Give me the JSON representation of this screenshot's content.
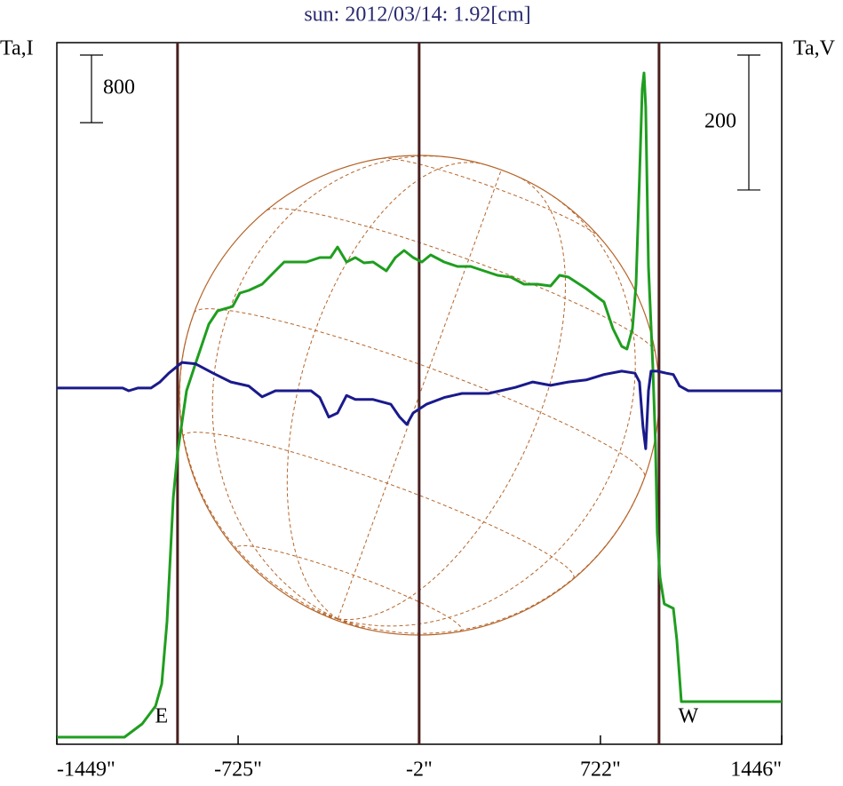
{
  "chart_data": {
    "type": "line",
    "title": "sun: 2012/03/14: 1.92[cm]",
    "ylabel": "Ta,I",
    "y2label": "Ta,V",
    "xlim": [
      -1449,
      1446
    ],
    "xticks": [
      {
        "value": -1449,
        "label": "-1449\""
      },
      {
        "value": -725,
        "label": "-725\""
      },
      {
        "value": -2,
        "label": "-2\""
      },
      {
        "value": 722,
        "label": "722\""
      },
      {
        "value": 1446,
        "label": "1446\""
      }
    ],
    "ylim": [
      -84,
      8216
    ],
    "y2lim": [
      -528,
      512
    ],
    "markers": [
      {
        "x": -967,
        "label": "E"
      },
      {
        "x": -2
      },
      {
        "x": 956,
        "label": "W"
      }
    ],
    "scale_bars": [
      {
        "value": 800,
        "axis": "y"
      },
      {
        "value": 200,
        "axis": "y2"
      }
    ],
    "series": [
      {
        "name": "I",
        "color": "#1f9e1f",
        "axis": "y",
        "x": [
          -1449,
          -1179,
          -1108,
          -1055,
          -1030,
          -1009,
          -984,
          -967,
          -931,
          -896,
          -842,
          -807,
          -747,
          -718,
          -683,
          -629,
          -594,
          -541,
          -505,
          -452,
          -399,
          -356,
          -328,
          -292,
          -257,
          -222,
          -186,
          -133,
          -97,
          -62,
          -26,
          9,
          44,
          98,
          151,
          204,
          257,
          311,
          364,
          417,
          470,
          523,
          559,
          594,
          665,
          736,
          772,
          807,
          828,
          850,
          864,
          878,
          889,
          896,
          903,
          914,
          931,
          942,
          949,
          960,
          977,
          1013,
          1027,
          1045,
          1056,
          1446
        ],
        "values": [
          0,
          0,
          158,
          368,
          630,
          1366,
          2837,
          3362,
          4098,
          4413,
          4885,
          5043,
          5095,
          5253,
          5285,
          5358,
          5463,
          5621,
          5621,
          5621,
          5673,
          5673,
          5799,
          5621,
          5673,
          5610,
          5621,
          5516,
          5673,
          5757,
          5673,
          5621,
          5705,
          5621,
          5568,
          5568,
          5516,
          5463,
          5442,
          5358,
          5358,
          5337,
          5463,
          5442,
          5306,
          5148,
          4833,
          4623,
          4591,
          4833,
          5358,
          6619,
          7669,
          7858,
          7459,
          5568,
          4413,
          3467,
          2416,
          1891,
          1576,
          1523,
          1156,
          420,
          420,
          420
        ]
      },
      {
        "name": "V",
        "color": "#1a1a8c",
        "axis": "y2",
        "x": [
          -1449,
          -1186,
          -1162,
          -1126,
          -1073,
          -1037,
          -1002,
          -949,
          -896,
          -825,
          -754,
          -683,
          -629,
          -576,
          -505,
          -434,
          -399,
          -363,
          -328,
          -292,
          -257,
          -186,
          -115,
          -80,
          -51,
          -26,
          27,
          98,
          169,
          275,
          382,
          452,
          523,
          594,
          665,
          736,
          807,
          860,
          878,
          892,
          903,
          914,
          924,
          949,
          985,
          1013,
          1038,
          1073,
          1446
        ],
        "values": [
          0,
          0,
          -4,
          0,
          0,
          9,
          22,
          38,
          36,
          22,
          9,
          3,
          -13,
          -4,
          -4,
          -4,
          -14,
          -43,
          -37,
          -11,
          -17,
          -17,
          -24,
          -43,
          -54,
          -37,
          -24,
          -14,
          -8,
          -8,
          1,
          9,
          4,
          9,
          12,
          20,
          25,
          22,
          9,
          -57,
          -90,
          -4,
          25,
          25,
          22,
          20,
          3,
          -4,
          -4
        ]
      }
    ]
  }
}
